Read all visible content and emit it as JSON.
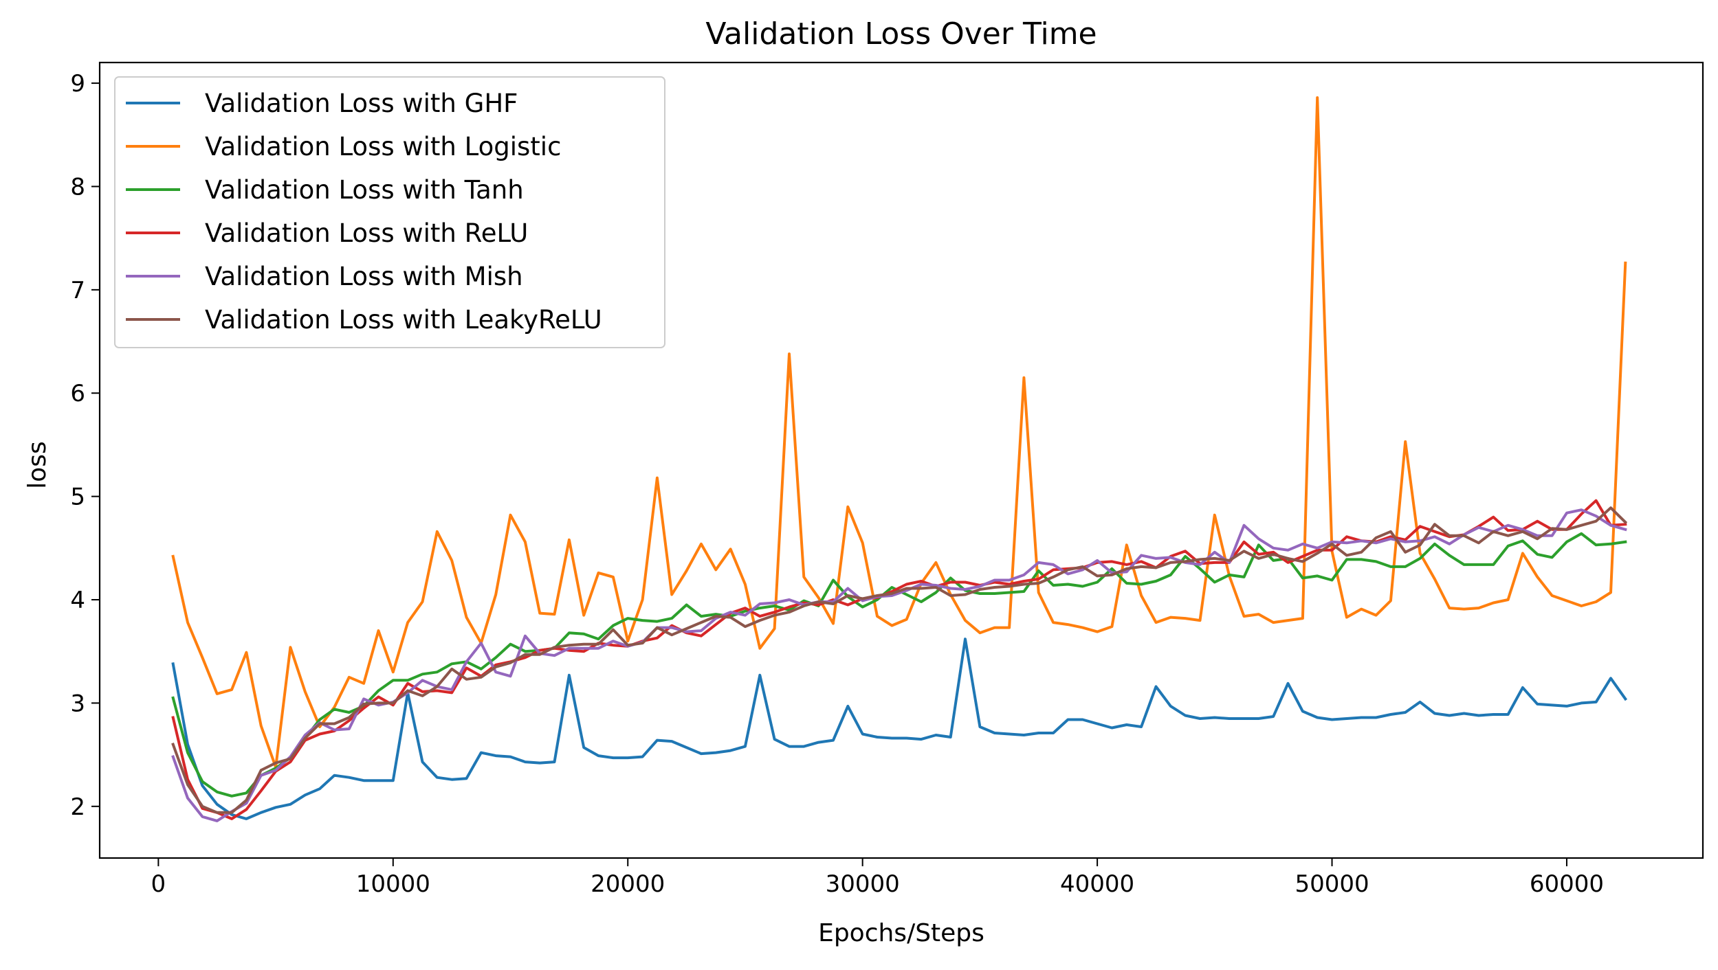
{
  "chart_data": {
    "type": "line",
    "title": "Validation Loss Over Time",
    "xlabel": "Epochs/Steps",
    "ylabel": "loss",
    "xlim": [
      -2500,
      65800
    ],
    "ylim": [
      1.5,
      9.2
    ],
    "xticks": [
      0,
      10000,
      20000,
      30000,
      40000,
      50000,
      60000
    ],
    "xtick_labels": [
      "0",
      "10000",
      "20000",
      "30000",
      "40000",
      "50000",
      "60000"
    ],
    "yticks": [
      2,
      3,
      4,
      5,
      6,
      7,
      8,
      9
    ],
    "ytick_labels": [
      "2",
      "3",
      "4",
      "5",
      "6",
      "7",
      "8",
      "9"
    ],
    "grid": false,
    "legend_position": "upper-left",
    "x": [
      625,
      1250,
      1875,
      2500,
      3125,
      3750,
      4375,
      5000,
      5625,
      6250,
      6875,
      7500,
      8125,
      8750,
      9375,
      10000,
      10625,
      11250,
      11875,
      12500,
      13125,
      13750,
      14375,
      15000,
      15625,
      16250,
      16875,
      17500,
      18125,
      18750,
      19375,
      20000,
      20625,
      21250,
      21875,
      22500,
      23125,
      23750,
      24375,
      25000,
      25625,
      26250,
      26875,
      27500,
      28125,
      28750,
      29375,
      30000,
      30625,
      31250,
      31875,
      32500,
      33125,
      33750,
      34375,
      35000,
      35625,
      36250,
      36875,
      37500,
      38125,
      38750,
      39375,
      40000,
      40625,
      41250,
      41875,
      42500,
      43125,
      43750,
      44375,
      45000,
      45625,
      46250,
      46875,
      47500,
      48125,
      48750,
      49375,
      50000,
      50625,
      51250,
      51875,
      52500,
      53125,
      53750,
      54375,
      55000,
      55625,
      56250,
      56875,
      57500,
      58125,
      58750,
      59375,
      60000,
      60625,
      61250,
      61875,
      62500
    ],
    "series": [
      {
        "name": "Validation Loss with GHF",
        "color": "#1f77b4",
        "values": [
          3.38,
          2.6,
          2.2,
          2.02,
          1.92,
          1.88,
          1.94,
          1.99,
          2.02,
          2.11,
          2.17,
          2.3,
          2.28,
          2.25,
          2.25,
          2.25,
          3.1,
          2.43,
          2.28,
          2.26,
          2.27,
          2.52,
          2.49,
          2.48,
          2.43,
          2.42,
          2.43,
          3.27,
          2.57,
          2.49,
          2.47,
          2.47,
          2.48,
          2.64,
          2.63,
          2.57,
          2.51,
          2.52,
          2.54,
          2.58,
          3.27,
          2.65,
          2.58,
          2.58,
          2.62,
          2.64,
          2.97,
          2.7,
          2.67,
          2.66,
          2.66,
          2.65,
          2.69,
          2.67,
          3.62,
          2.77,
          2.71,
          2.7,
          2.69,
          2.71,
          2.71,
          2.84,
          2.84,
          2.8,
          2.76,
          2.79,
          2.77,
          3.16,
          2.97,
          2.88,
          2.85,
          2.86,
          2.85,
          2.85,
          2.85,
          2.87,
          3.19,
          2.92,
          2.86,
          2.84,
          2.85,
          2.86,
          2.86,
          2.89,
          2.91,
          3.01,
          2.9,
          2.88,
          2.9,
          2.88,
          2.89,
          2.89,
          3.15,
          2.99,
          2.98,
          2.97,
          3.0,
          3.01,
          3.24,
          3.04
        ]
      },
      {
        "name": "Validation Loss with Logistic",
        "color": "#ff7f0e",
        "values": [
          4.42,
          3.78,
          3.44,
          3.09,
          3.13,
          3.49,
          2.78,
          2.38,
          3.54,
          3.11,
          2.77,
          2.96,
          3.25,
          3.19,
          3.7,
          3.3,
          3.78,
          3.98,
          4.66,
          4.38,
          3.83,
          3.58,
          4.05,
          4.82,
          4.56,
          3.87,
          3.86,
          4.58,
          3.85,
          4.26,
          4.22,
          3.6,
          4.0,
          5.18,
          4.05,
          4.28,
          4.54,
          4.29,
          4.49,
          4.15,
          3.53,
          3.72,
          6.38,
          4.22,
          4.02,
          3.77,
          4.9,
          4.55,
          3.84,
          3.75,
          3.81,
          4.16,
          4.36,
          4.05,
          3.8,
          3.68,
          3.73,
          3.73,
          6.15,
          4.07,
          3.78,
          3.76,
          3.73,
          3.69,
          3.74,
          4.53,
          4.04,
          3.78,
          3.83,
          3.82,
          3.8,
          4.82,
          4.23,
          3.84,
          3.86,
          3.78,
          3.8,
          3.82,
          8.86,
          4.47,
          3.83,
          3.91,
          3.85,
          3.99,
          5.53,
          4.45,
          4.2,
          3.92,
          3.91,
          3.92,
          3.97,
          4.0,
          4.45,
          4.22,
          4.04,
          3.99,
          3.94,
          3.98,
          4.07,
          7.26
        ]
      },
      {
        "name": "Validation Loss with Tanh",
        "color": "#2ca02c",
        "values": [
          3.05,
          2.52,
          2.24,
          2.14,
          2.1,
          2.13,
          2.3,
          2.37,
          2.47,
          2.66,
          2.84,
          2.94,
          2.91,
          2.97,
          3.12,
          3.22,
          3.22,
          3.28,
          3.3,
          3.38,
          3.4,
          3.33,
          3.44,
          3.57,
          3.5,
          3.51,
          3.53,
          3.68,
          3.67,
          3.62,
          3.75,
          3.82,
          3.8,
          3.79,
          3.82,
          3.95,
          3.84,
          3.86,
          3.84,
          3.89,
          3.92,
          3.94,
          3.9,
          3.99,
          3.94,
          4.19,
          4.03,
          3.93,
          4.0,
          4.12,
          4.05,
          3.98,
          4.07,
          4.21,
          4.09,
          4.06,
          4.06,
          4.07,
          4.08,
          4.28,
          4.14,
          4.15,
          4.13,
          4.17,
          4.3,
          4.16,
          4.15,
          4.18,
          4.24,
          4.42,
          4.3,
          4.17,
          4.24,
          4.22,
          4.53,
          4.38,
          4.4,
          4.21,
          4.23,
          4.19,
          4.39,
          4.39,
          4.37,
          4.32,
          4.32,
          4.4,
          4.54,
          4.43,
          4.34,
          4.34,
          4.34,
          4.52,
          4.57,
          4.44,
          4.41,
          4.56,
          4.64,
          4.53,
          4.54,
          4.56
        ]
      },
      {
        "name": "Validation Loss with ReLU",
        "color": "#d62728",
        "values": [
          2.86,
          2.26,
          1.98,
          1.94,
          1.88,
          1.97,
          2.15,
          2.34,
          2.43,
          2.64,
          2.7,
          2.73,
          2.83,
          2.95,
          3.06,
          2.98,
          3.19,
          3.11,
          3.12,
          3.1,
          3.34,
          3.26,
          3.37,
          3.4,
          3.44,
          3.51,
          3.53,
          3.51,
          3.5,
          3.58,
          3.56,
          3.55,
          3.6,
          3.63,
          3.75,
          3.68,
          3.65,
          3.76,
          3.87,
          3.92,
          3.84,
          3.88,
          3.93,
          3.97,
          3.95,
          4.0,
          3.95,
          4.01,
          4.02,
          4.08,
          4.15,
          4.18,
          4.13,
          4.17,
          4.17,
          4.14,
          4.17,
          4.15,
          4.18,
          4.2,
          4.29,
          4.3,
          4.31,
          4.36,
          4.37,
          4.34,
          4.37,
          4.31,
          4.42,
          4.47,
          4.35,
          4.36,
          4.36,
          4.56,
          4.44,
          4.46,
          4.36,
          4.42,
          4.48,
          4.48,
          4.61,
          4.57,
          4.56,
          4.61,
          4.58,
          4.71,
          4.66,
          4.61,
          4.63,
          4.71,
          4.8,
          4.67,
          4.68,
          4.76,
          4.68,
          4.68,
          4.83,
          4.96,
          4.72,
          4.73
        ]
      },
      {
        "name": "Validation Loss with Mish",
        "color": "#9467bd",
        "values": [
          2.48,
          2.08,
          1.9,
          1.86,
          1.95,
          2.03,
          2.3,
          2.35,
          2.48,
          2.69,
          2.81,
          2.74,
          2.75,
          3.04,
          2.98,
          3.01,
          3.1,
          3.22,
          3.16,
          3.13,
          3.4,
          3.58,
          3.3,
          3.26,
          3.65,
          3.48,
          3.46,
          3.53,
          3.53,
          3.53,
          3.6,
          3.55,
          3.59,
          3.73,
          3.73,
          3.69,
          3.7,
          3.82,
          3.88,
          3.85,
          3.96,
          3.97,
          4.0,
          3.95,
          3.98,
          3.98,
          4.11,
          3.99,
          4.03,
          4.04,
          4.09,
          4.15,
          4.14,
          4.11,
          4.1,
          4.13,
          4.19,
          4.19,
          4.24,
          4.36,
          4.34,
          4.25,
          4.29,
          4.38,
          4.26,
          4.27,
          4.43,
          4.4,
          4.41,
          4.36,
          4.34,
          4.46,
          4.36,
          4.72,
          4.59,
          4.5,
          4.48,
          4.54,
          4.5,
          4.56,
          4.55,
          4.57,
          4.55,
          4.59,
          4.56,
          4.57,
          4.61,
          4.54,
          4.63,
          4.7,
          4.66,
          4.72,
          4.68,
          4.62,
          4.62,
          4.84,
          4.87,
          4.81,
          4.72,
          4.68
        ]
      },
      {
        "name": "Validation Loss with LeakyReLU",
        "color": "#8c564b",
        "values": [
          2.6,
          2.21,
          2.0,
          1.94,
          1.94,
          2.06,
          2.35,
          2.42,
          2.46,
          2.66,
          2.8,
          2.8,
          2.86,
          2.99,
          3.0,
          3.0,
          3.12,
          3.07,
          3.16,
          3.33,
          3.23,
          3.25,
          3.35,
          3.39,
          3.47,
          3.47,
          3.54,
          3.56,
          3.57,
          3.57,
          3.71,
          3.56,
          3.58,
          3.73,
          3.66,
          3.72,
          3.78,
          3.84,
          3.83,
          3.74,
          3.8,
          3.85,
          3.88,
          3.94,
          3.98,
          3.96,
          4.04,
          4.01,
          4.04,
          4.06,
          4.11,
          4.11,
          4.12,
          4.04,
          4.05,
          4.1,
          4.12,
          4.13,
          4.15,
          4.16,
          4.22,
          4.29,
          4.32,
          4.23,
          4.24,
          4.3,
          4.32,
          4.31,
          4.36,
          4.37,
          4.39,
          4.4,
          4.38,
          4.47,
          4.4,
          4.44,
          4.4,
          4.37,
          4.45,
          4.54,
          4.43,
          4.46,
          4.6,
          4.66,
          4.46,
          4.53,
          4.73,
          4.62,
          4.62,
          4.55,
          4.66,
          4.62,
          4.66,
          4.59,
          4.69,
          4.68,
          4.72,
          4.76,
          4.89,
          4.75
        ]
      }
    ]
  }
}
